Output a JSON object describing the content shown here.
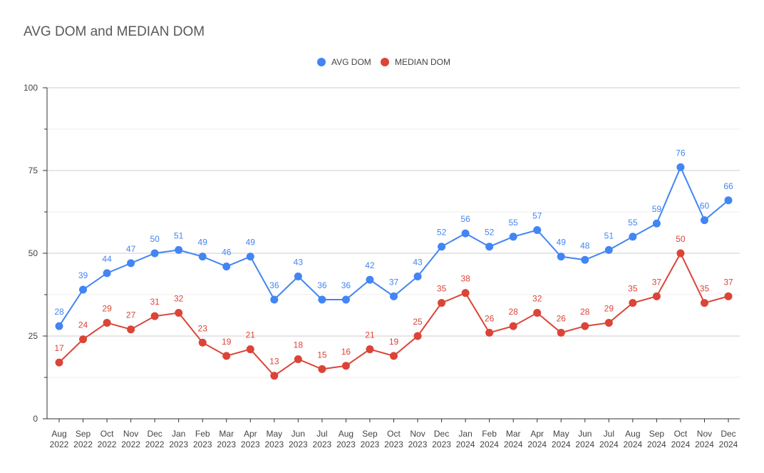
{
  "chart_data": {
    "type": "line",
    "title": "AVG DOM and MEDIAN DOM",
    "xlabel": "",
    "ylabel": "",
    "ylim": [
      0,
      100
    ],
    "yticks": [
      0,
      25,
      50,
      75,
      100
    ],
    "grid": true,
    "legend_position": "top",
    "categories": [
      [
        "Aug",
        "2022"
      ],
      [
        "Sep",
        "2022"
      ],
      [
        "Oct",
        "2022"
      ],
      [
        "Nov",
        "2022"
      ],
      [
        "Dec",
        "2022"
      ],
      [
        "Jan",
        "2023"
      ],
      [
        "Feb",
        "2023"
      ],
      [
        "Mar",
        "2023"
      ],
      [
        "Apr",
        "2023"
      ],
      [
        "May",
        "2023"
      ],
      [
        "Jun",
        "2023"
      ],
      [
        "Jul",
        "2023"
      ],
      [
        "Aug",
        "2023"
      ],
      [
        "Sep",
        "2023"
      ],
      [
        "Oct",
        "2023"
      ],
      [
        "Nov",
        "2023"
      ],
      [
        "Dec",
        "2023"
      ],
      [
        "Jan",
        "2024"
      ],
      [
        "Feb",
        "2024"
      ],
      [
        "Mar",
        "2024"
      ],
      [
        "Apr",
        "2024"
      ],
      [
        "May",
        "2024"
      ],
      [
        "Jun",
        "2024"
      ],
      [
        "Jul",
        "2024"
      ],
      [
        "Aug",
        "2024"
      ],
      [
        "Sep",
        "2024"
      ],
      [
        "Oct",
        "2024"
      ],
      [
        "Nov",
        "2024"
      ],
      [
        "Dec",
        "2024"
      ]
    ],
    "series": [
      {
        "name": "AVG DOM",
        "color": "#4285f4",
        "values": [
          28,
          39,
          44,
          47,
          50,
          51,
          49,
          46,
          49,
          36,
          43,
          36,
          36,
          42,
          37,
          43,
          52,
          56,
          52,
          55,
          57,
          49,
          48,
          51,
          55,
          59,
          76,
          60,
          66
        ]
      },
      {
        "name": "MEDIAN DOM",
        "color": "#db4437",
        "values": [
          17,
          24,
          29,
          27,
          31,
          32,
          23,
          19,
          21,
          13,
          18,
          15,
          16,
          21,
          19,
          25,
          35,
          38,
          26,
          28,
          32,
          26,
          28,
          29,
          35,
          37,
          50,
          35,
          37
        ]
      }
    ]
  }
}
